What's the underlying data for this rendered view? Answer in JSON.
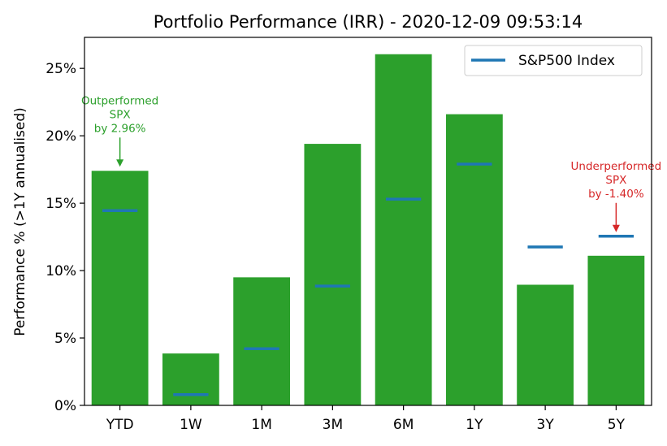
{
  "chart_data": {
    "type": "bar",
    "title": "Portfolio Performance (IRR) - 2020-12-09 09:53:14",
    "xlabel": "",
    "ylabel": "Performance % (>1Y annualised)",
    "categories": [
      "YTD",
      "1W",
      "1M",
      "3M",
      "6M",
      "1Y",
      "3Y",
      "5Y"
    ],
    "values": [
      17.4,
      3.85,
      9.5,
      19.4,
      26.05,
      21.6,
      8.95,
      11.1
    ],
    "benchmark": {
      "name": "S&P500 Index",
      "values": [
        14.45,
        0.8,
        4.2,
        8.85,
        15.3,
        17.9,
        11.75,
        12.55
      ]
    },
    "ylim": [
      0,
      27.3
    ],
    "yticks": [
      0,
      5,
      10,
      15,
      20,
      25
    ],
    "ytick_labels": [
      "0%",
      "5%",
      "10%",
      "15%",
      "20%",
      "25%"
    ],
    "grid": false,
    "legend_position": "top-right",
    "colors": {
      "bar": "#2ca02c",
      "benchmark": "#1f77b4",
      "outperform": "#2ca02c",
      "underperform": "#d62728"
    },
    "annotations": [
      {
        "category": "YTD",
        "lines": [
          "Outperformed",
          "SPX",
          "by 2.96%"
        ],
        "type": "outperform"
      },
      {
        "category": "5Y",
        "lines": [
          "Underperformed",
          "SPX",
          "by -1.40%"
        ],
        "type": "underperform"
      }
    ]
  }
}
